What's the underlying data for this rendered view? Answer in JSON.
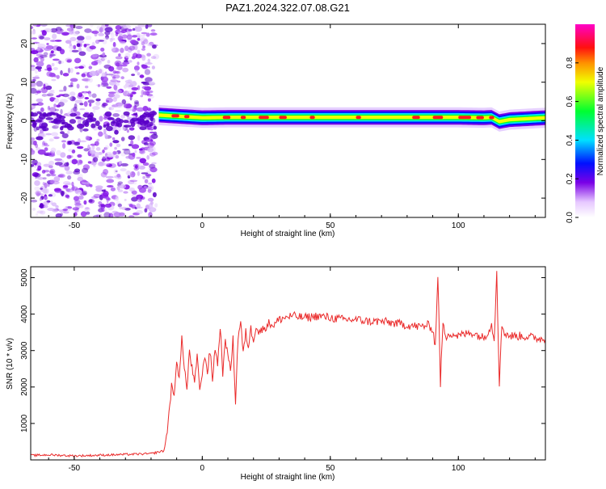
{
  "title": "PAZ1.2024.322.07.08.G21",
  "chart_data": [
    {
      "type": "heatmap",
      "xlabel": "Height of straight line (km)",
      "ylabel": "Frequency (Hz)",
      "xlim": [
        -67,
        134
      ],
      "ylim": [
        -25,
        25
      ],
      "xticks": [
        -50,
        0,
        50,
        100
      ],
      "yticks": [
        -20,
        -10,
        0,
        10,
        20
      ],
      "colorbar": {
        "label": "Normalized spectral amplitude",
        "range": [
          0,
          1
        ],
        "ticks": [
          "0.0",
          "0.2",
          "0.4",
          "0.6",
          "0.8"
        ]
      },
      "ridge": {
        "x_start": -17,
        "x_end": 134,
        "frequency_points": [
          [
            -17,
            1.5
          ],
          [
            -10,
            1.2
          ],
          [
            0,
            0.8
          ],
          [
            10,
            0.9
          ],
          [
            20,
            0.9
          ],
          [
            40,
            0.9
          ],
          [
            60,
            0.9
          ],
          [
            80,
            0.9
          ],
          [
            100,
            0.9
          ],
          [
            110,
            0.8
          ],
          [
            113,
            0.9
          ],
          [
            116,
            -0.2
          ],
          [
            120,
            0.3
          ],
          [
            134,
            0.8
          ]
        ]
      },
      "noise_region": {
        "x_start": -67,
        "x_end": -18
      },
      "grid": false
    },
    {
      "type": "line",
      "xlabel": "Height of straight line (km)",
      "ylabel": "SNR (10 * v/v)",
      "xlim": [
        -67,
        134
      ],
      "ylim": [
        0,
        5300
      ],
      "xticks": [
        -50,
        0,
        50,
        100
      ],
      "yticks": [
        1000,
        2000,
        3000,
        4000,
        5000
      ],
      "color": "#ea2b2b",
      "series": [
        {
          "x": [
            -67,
            -60,
            -50,
            -40,
            -30,
            -20,
            -15,
            -14,
            -13,
            -12,
            -11,
            -10,
            -9,
            -8,
            -7,
            -6,
            -5,
            -4,
            -3,
            -2,
            -1,
            0,
            1,
            2,
            3,
            4,
            5,
            6,
            7,
            8,
            9,
            10,
            11,
            12,
            13,
            14,
            15,
            16,
            17,
            18,
            19,
            20,
            21,
            22,
            24,
            26,
            28,
            30,
            32,
            35,
            40,
            45,
            50,
            55,
            60,
            65,
            70,
            75,
            80,
            85,
            88,
            90,
            91,
            92,
            93,
            94,
            95,
            96,
            100,
            105,
            110,
            113,
            114,
            115,
            116,
            117,
            118,
            119,
            120,
            125,
            130,
            134
          ],
          "values": [
            120,
            140,
            110,
            130,
            150,
            170,
            250,
            600,
            1300,
            2000,
            1700,
            2800,
            2200,
            3300,
            2600,
            1900,
            3000,
            2500,
            2100,
            2800,
            2000,
            2300,
            2900,
            2400,
            3000,
            2200,
            3100,
            2600,
            3700,
            2400,
            3200,
            3000,
            2400,
            3300,
            1600,
            3400,
            3800,
            2900,
            3500,
            3100,
            3600,
            3300,
            3700,
            3500,
            3600,
            3750,
            3700,
            3850,
            3900,
            3950,
            3900,
            3950,
            3900,
            3850,
            3850,
            3800,
            3800,
            3750,
            3700,
            3650,
            3700,
            3600,
            3100,
            5100,
            2100,
            3800,
            3300,
            3500,
            3400,
            3500,
            3350,
            3700,
            3300,
            5200,
            2100,
            3700,
            3500,
            3450,
            3400,
            3400,
            3350,
            3300
          ]
        }
      ],
      "grid": false
    }
  ]
}
